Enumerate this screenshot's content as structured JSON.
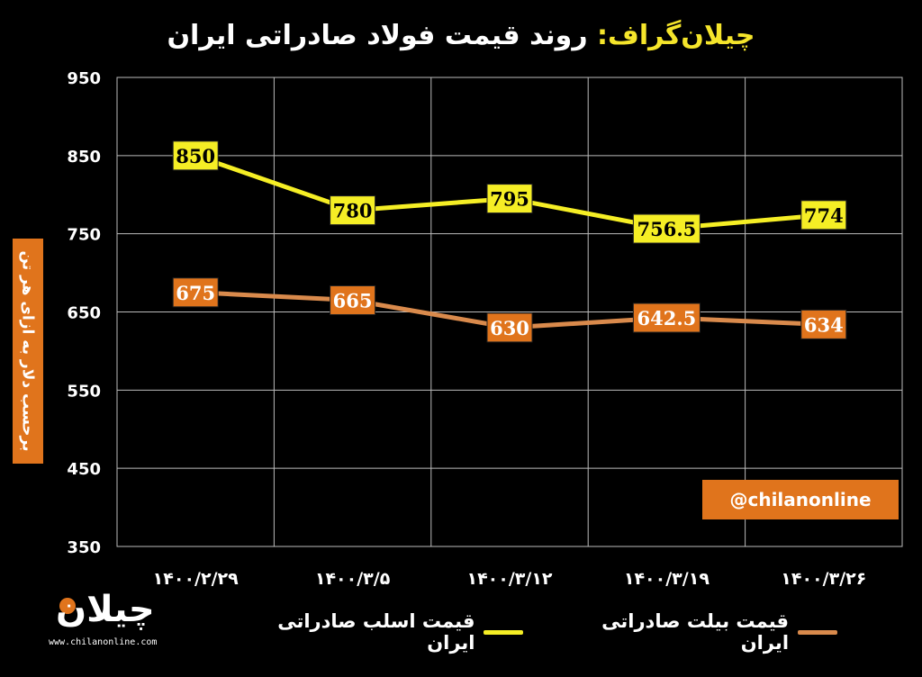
{
  "header": {
    "brand": "چیلان‌گراف:",
    "title": "روند قیمت فولاد صادراتی ایران"
  },
  "ylabel": "برحسب دلار به ازای هر تن",
  "handle": "@chilanonline",
  "logo": {
    "mark": "چیلان",
    "url": "www.chilanonline.com"
  },
  "colors": {
    "slab": "#f5ee25",
    "billet": "#d98a4c",
    "box_orange": "#e0741c"
  },
  "chart_data": {
    "type": "line",
    "categories": [
      "۱۴۰۰/۲/۲۹",
      "۱۴۰۰/۳/۵",
      "۱۴۰۰/۳/۱۲",
      "۱۴۰۰/۳/۱۹",
      "۱۴۰۰/۳/۲۶"
    ],
    "series": [
      {
        "name": "قیمت اسلب صادراتی ایران",
        "values": [
          850,
          780,
          795,
          756.5,
          774
        ],
        "labels": [
          "850",
          "780",
          "795",
          "756.5",
          "774"
        ]
      },
      {
        "name": "قیمت بیلت صادراتی ایران",
        "values": [
          675,
          665,
          630,
          642.5,
          634
        ],
        "labels": [
          "675",
          "665",
          "630",
          "642.5",
          "634"
        ]
      }
    ],
    "ylim": [
      350,
      950
    ],
    "yticks": [
      "350",
      "450",
      "550",
      "650",
      "750",
      "850",
      "950"
    ],
    "grid": true,
    "legend_position": "bottom"
  }
}
